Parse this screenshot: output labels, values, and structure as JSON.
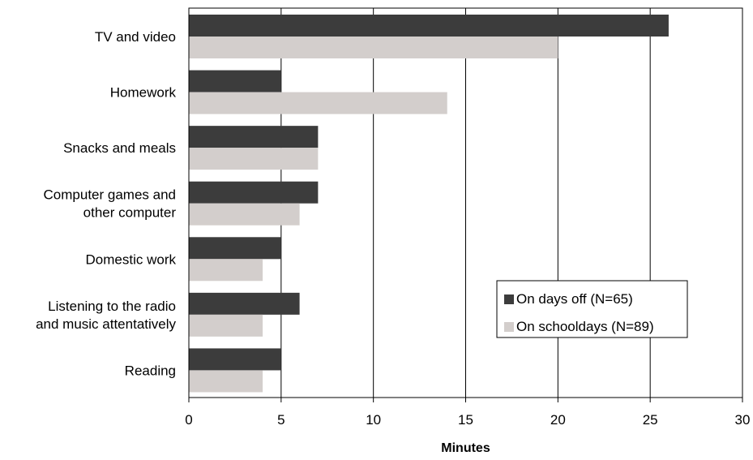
{
  "chart_data": {
    "type": "bar",
    "orientation": "horizontal",
    "title": "",
    "xlabel": "Minutes",
    "ylabel": "",
    "xlim": [
      0,
      30
    ],
    "xticks": [
      0,
      5,
      10,
      15,
      20,
      25,
      30
    ],
    "grid": true,
    "legend_position": "right",
    "categories": [
      [
        "TV and video"
      ],
      [
        "Homework"
      ],
      [
        "Snacks and meals"
      ],
      [
        "Computer games and",
        "other computer"
      ],
      [
        "Domestic work"
      ],
      [
        "Listening to the radio",
        "and music attentatively"
      ],
      [
        "Reading"
      ]
    ],
    "series": [
      {
        "name": "On days off (N=65)",
        "color": "#3c3c3c",
        "values": [
          26,
          5,
          7,
          7,
          5,
          6,
          5
        ]
      },
      {
        "name": "On schooldays (N=89)",
        "color": "#d3cecc",
        "values": [
          20,
          14,
          7,
          6,
          4,
          4,
          4
        ]
      }
    ]
  }
}
